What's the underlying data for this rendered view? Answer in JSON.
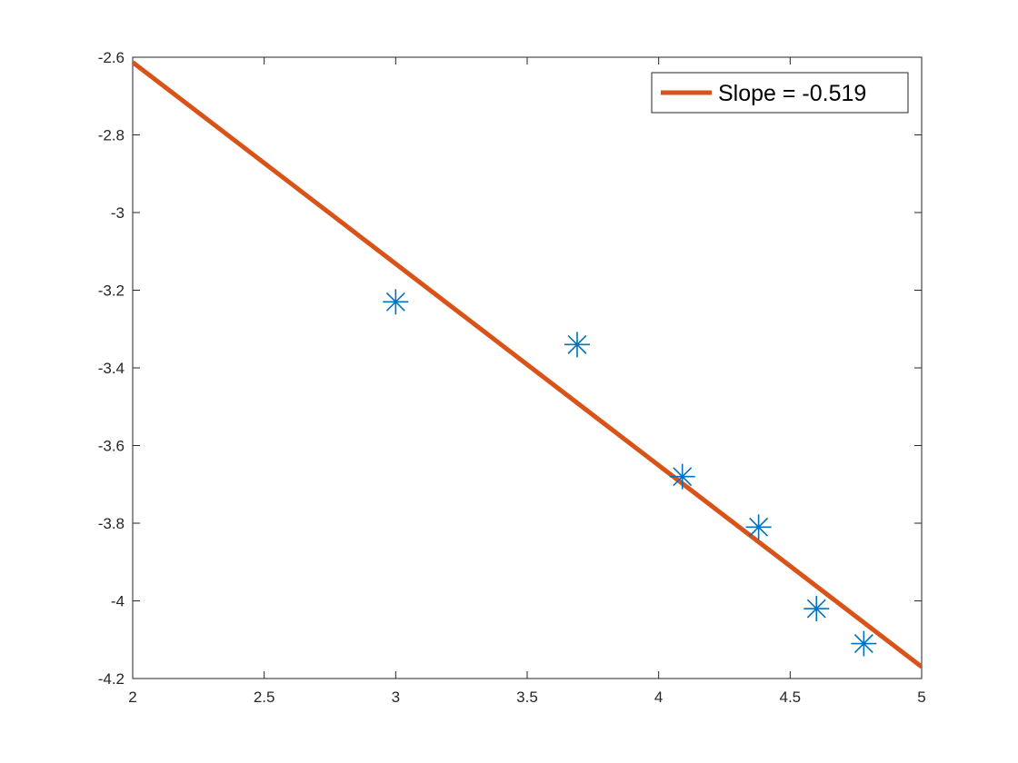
{
  "chart_data": {
    "type": "scatter",
    "title": "",
    "xlabel": "",
    "ylabel": "",
    "xlim": [
      2,
      5
    ],
    "ylim": [
      -4.2,
      -2.6
    ],
    "xticks": [
      2,
      2.5,
      3,
      3.5,
      4,
      4.5,
      5
    ],
    "xtick_labels": [
      "2",
      "2.5",
      "3",
      "3.5",
      "4",
      "4.5",
      "5"
    ],
    "yticks": [
      -4.2,
      -4,
      -3.8,
      -3.6,
      -3.4,
      -3.2,
      -3,
      -2.8,
      -2.6
    ],
    "ytick_labels": [
      "-4.2",
      "-4",
      "-3.8",
      "-3.6",
      "-3.4",
      "-3.2",
      "-3",
      "-2.8",
      "-2.6"
    ],
    "grid": false,
    "legend_position": "top-right",
    "series": [
      {
        "type": "scatter",
        "marker": "asterisk",
        "color": "#0072BD",
        "x": [
          3.0,
          3.69,
          4.09,
          4.38,
          4.6,
          4.78
        ],
        "y": [
          -3.23,
          -3.34,
          -3.68,
          -3.81,
          -4.02,
          -4.11
        ]
      },
      {
        "type": "line",
        "name": "Slope = -0.519",
        "color": "#D95319",
        "x": [
          2,
          5
        ],
        "y": [
          -2.613,
          -4.17
        ]
      }
    ]
  }
}
